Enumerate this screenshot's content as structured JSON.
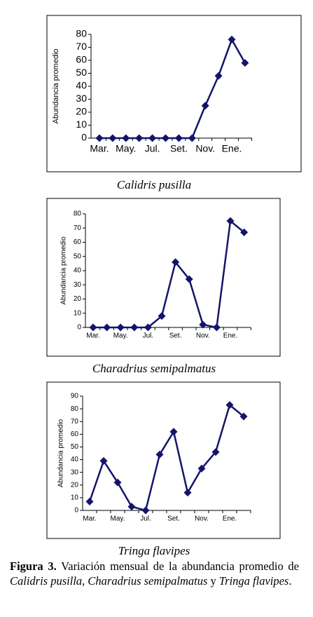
{
  "chart_data": [
    {
      "type": "line",
      "title": "Calidris pusilla",
      "y_label": "Abundancia promedio",
      "categories": [
        "Mar.",
        null,
        "May.",
        null,
        "Jul.",
        null,
        "Set.",
        null,
        "Nov.",
        null,
        "Ene.",
        null
      ],
      "series": [
        {
          "color": "#14146b",
          "values": [
            0,
            0,
            0,
            0,
            0,
            0,
            0,
            0,
            25,
            48,
            76,
            58
          ]
        }
      ],
      "ylim": [
        0,
        80
      ],
      "yticks": [
        0,
        10,
        20,
        30,
        40,
        50,
        60,
        70,
        80
      ]
    },
    {
      "type": "line",
      "title": "Charadrius semipalmatus",
      "y_label": "Abundancia promedio",
      "categories": [
        "Mar.",
        null,
        "May.",
        null,
        "Jul.",
        null,
        "Set.",
        null,
        "Nov.",
        null,
        "Ene.",
        null
      ],
      "series": [
        {
          "color": "#14146b",
          "values": [
            0,
            0,
            0,
            0,
            0,
            8,
            46,
            34,
            2,
            0,
            75,
            67
          ]
        }
      ],
      "ylim": [
        0,
        80
      ],
      "yticks": [
        0,
        10,
        20,
        30,
        40,
        50,
        60,
        70,
        80
      ]
    },
    {
      "type": "line",
      "title": "Tringa flavipes",
      "y_label": "Abundancia promedio",
      "categories": [
        "Mar.",
        null,
        "May.",
        null,
        "Jul.",
        null,
        "Set.",
        null,
        "Nov.",
        null,
        "Ene.",
        null
      ],
      "series": [
        {
          "color": "#14146b",
          "values": [
            7,
            39,
            22,
            3,
            0,
            44,
            62,
            14,
            33,
            46,
            83,
            74
          ]
        }
      ],
      "ylim": [
        0,
        90
      ],
      "yticks": [
        0,
        10,
        20,
        30,
        40,
        50,
        60,
        70,
        80,
        90
      ]
    }
  ],
  "caption": {
    "parts": [
      "Figura 3.",
      " Variación mensual de la abundancia promedio de ",
      "Calidris pusilla,",
      " ",
      "Charadrius semipalmatus",
      " y ",
      "Tringa flavipes",
      "."
    ]
  }
}
